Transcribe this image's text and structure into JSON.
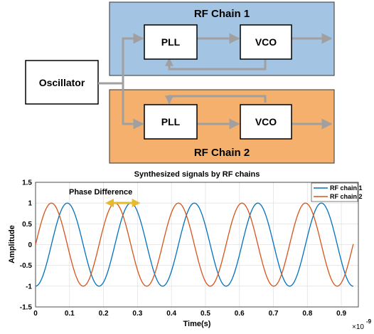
{
  "diagram": {
    "chain1_title": "RF Chain 1",
    "chain2_title": "RF Chain 2",
    "oscillator_label": "Oscillator",
    "pll_label": "PLL",
    "vco_label": "VCO",
    "colors": {
      "chain1_fill": "#a4c4e4",
      "chain2_fill": "#f4b06c",
      "arrow": "#a0a0a0"
    }
  },
  "chart_data": {
    "type": "line",
    "title": "Synthesized signals by RF chains",
    "xlabel": "Time(s)",
    "ylabel": "Amplitude",
    "x_multiplier_label": "×10",
    "x_multiplier_exponent": "-9",
    "xlim": [
      0,
      0.95
    ],
    "ylim": [
      -1.5,
      1.5
    ],
    "xticks": [
      "0",
      "0.1",
      "0.2",
      "0.3",
      "0.4",
      "0.5",
      "0.6",
      "0.7",
      "0.8",
      "0.9"
    ],
    "yticks": [
      "1.5",
      "1",
      "0.5",
      "0",
      "-0.5",
      "-1",
      "-1.5"
    ],
    "grid": true,
    "legend_position": "top-right",
    "annotation": "Phase Difference",
    "x_range": [
      0,
      0.935
    ],
    "frequency_ghz": 5.35,
    "series": [
      {
        "name": "RF chain 1",
        "color": "#0072bd",
        "amplitude": 1,
        "phase_deg": -90
      },
      {
        "name": "RF chain 2",
        "color": "#d95319",
        "amplitude": 1,
        "phase_deg": 0
      }
    ]
  }
}
